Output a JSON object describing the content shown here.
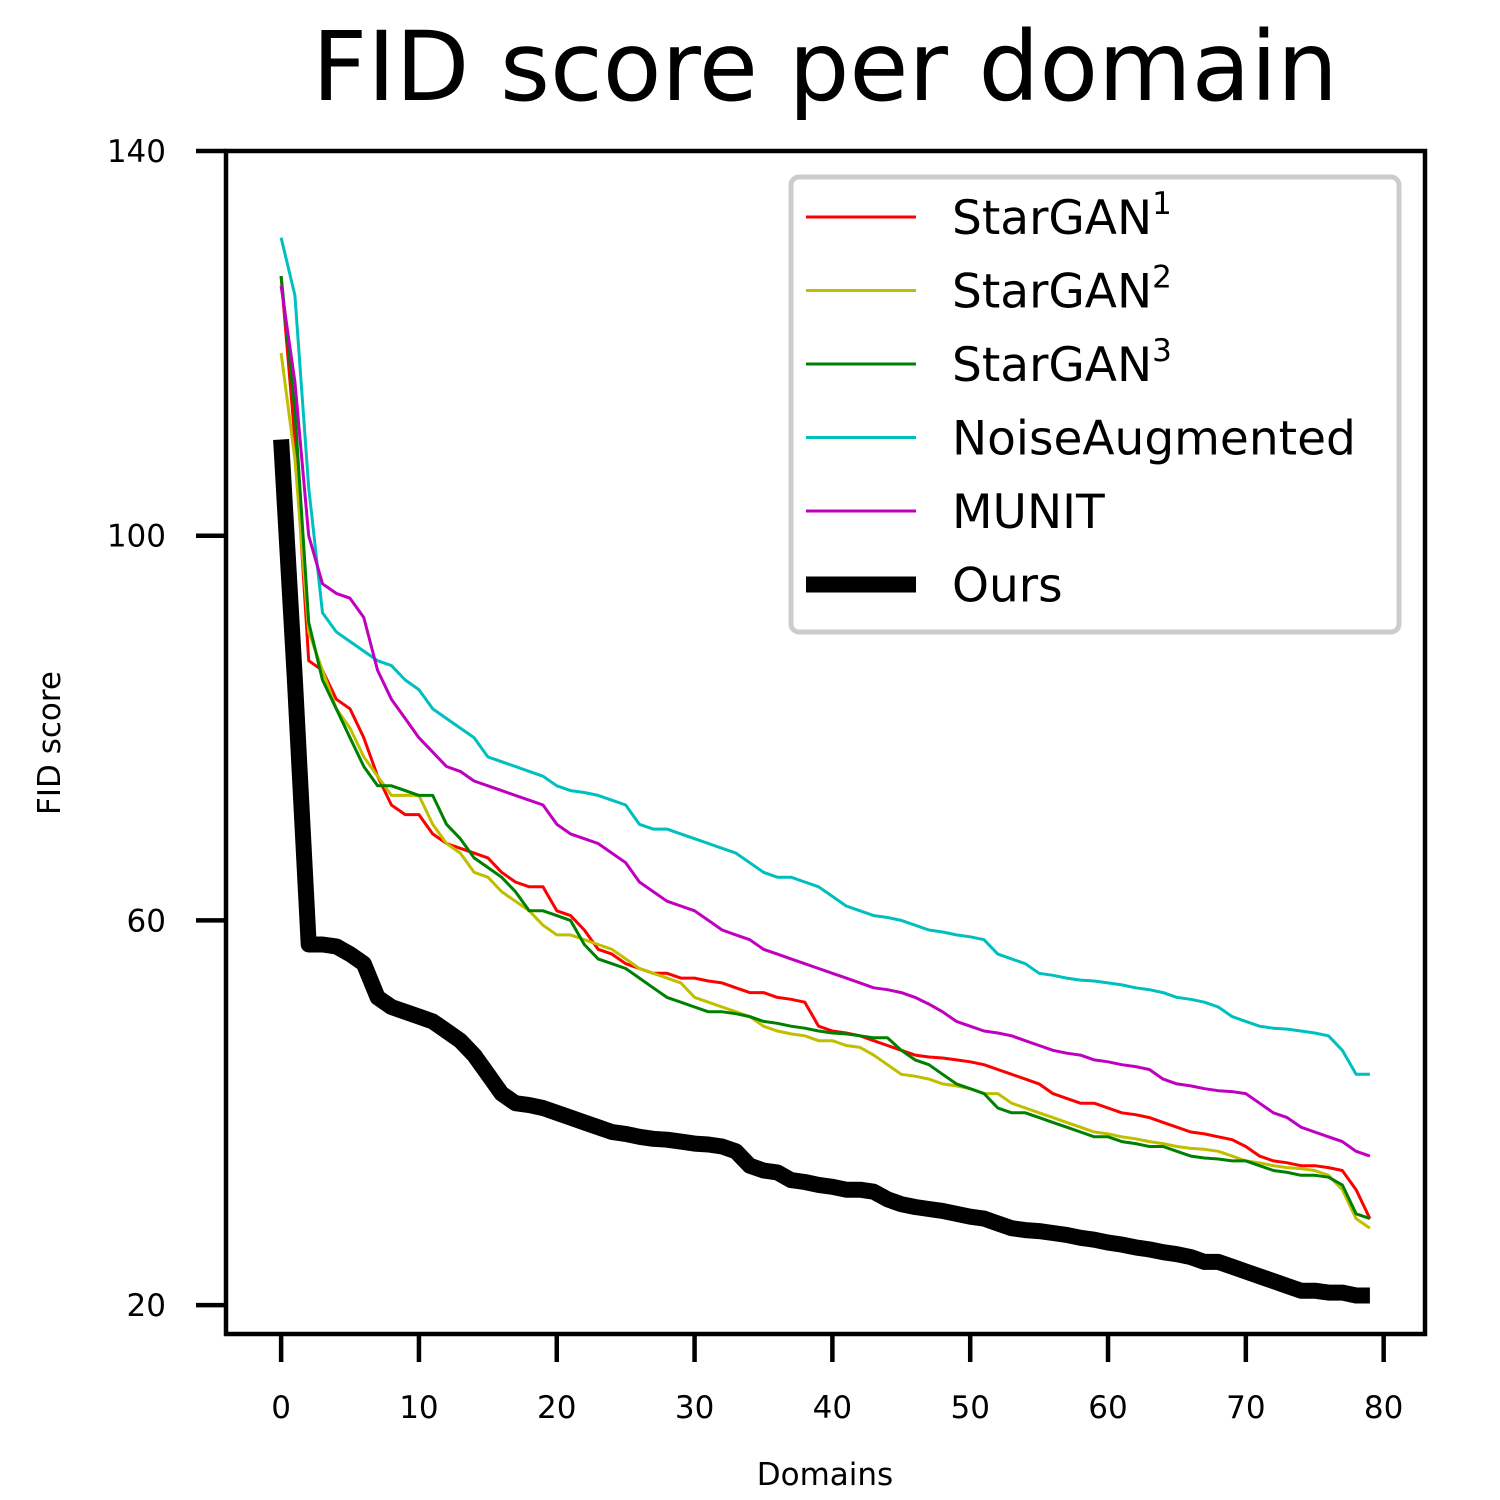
{
  "chart_data": {
    "type": "line",
    "title": "FID score per domain",
    "xlabel": "Domains",
    "ylabel": "FID score",
    "xlim": [
      -4,
      83
    ],
    "ylim": [
      17,
      140
    ],
    "xticks": [
      0,
      10,
      20,
      30,
      40,
      50,
      60,
      70,
      80
    ],
    "yticks": [
      20,
      60,
      100,
      140
    ],
    "legend_position": "top-right",
    "grid": false,
    "series": [
      {
        "name": "StarGAN",
        "superscript": "1",
        "color": "#ff0000",
        "linewidth": "thin",
        "x": [
          0,
          1,
          2,
          3,
          4,
          5,
          6,
          7,
          8,
          9,
          10,
          11,
          12,
          13,
          14,
          15,
          16,
          17,
          18,
          19,
          20,
          21,
          22,
          23,
          24,
          25,
          26,
          27,
          28,
          29,
          30,
          31,
          32,
          33,
          34,
          35,
          36,
          37,
          38,
          39,
          40,
          41,
          42,
          43,
          44,
          45,
          46,
          47,
          48,
          49,
          50,
          51,
          52,
          53,
          54,
          55,
          56,
          57,
          58,
          59,
          60,
          61,
          62,
          63,
          64,
          65,
          66,
          67,
          68,
          69,
          70,
          71,
          72,
          73,
          74,
          75,
          76,
          77,
          78,
          79
        ],
        "y": [
          127,
          110,
          87,
          86,
          83,
          82,
          79,
          75,
          72,
          71,
          71,
          69,
          68,
          67.5,
          67,
          66.5,
          65,
          64,
          63.5,
          63.5,
          61,
          60.5,
          59,
          57,
          56.5,
          55.5,
          55,
          54.5,
          54.5,
          54,
          54,
          53.7,
          53.5,
          53,
          52.5,
          52.5,
          52,
          51.8,
          51.5,
          49,
          48.5,
          48.3,
          48,
          47.5,
          47,
          46.5,
          46,
          45.8,
          45.7,
          45.5,
          45.3,
          45,
          44.5,
          44,
          43.5,
          43,
          42,
          41.5,
          41,
          41,
          40.5,
          40,
          39.8,
          39.5,
          39,
          38.5,
          38,
          37.8,
          37.5,
          37.2,
          36.5,
          35.5,
          35,
          34.8,
          34.5,
          34.5,
          34.3,
          34,
          32,
          29
        ]
      },
      {
        "name": "StarGAN",
        "superscript": "2",
        "color": "#bfbf00",
        "linewidth": "thin",
        "x": [
          0,
          1,
          2,
          3,
          4,
          5,
          6,
          7,
          8,
          9,
          10,
          11,
          12,
          13,
          14,
          15,
          16,
          17,
          18,
          19,
          20,
          21,
          22,
          23,
          24,
          25,
          26,
          27,
          28,
          29,
          30,
          31,
          32,
          33,
          34,
          35,
          36,
          37,
          38,
          39,
          40,
          41,
          42,
          43,
          44,
          45,
          46,
          47,
          48,
          49,
          50,
          51,
          52,
          53,
          54,
          55,
          56,
          57,
          58,
          59,
          60,
          61,
          62,
          63,
          64,
          65,
          66,
          67,
          68,
          69,
          70,
          71,
          72,
          73,
          74,
          75,
          76,
          77,
          78,
          79
        ],
        "y": [
          119,
          108,
          90,
          86,
          82,
          80,
          77,
          75,
          73,
          73,
          73,
          70,
          68,
          67,
          65,
          64.5,
          63,
          62,
          61,
          59.5,
          58.5,
          58.5,
          58,
          57.5,
          57,
          56,
          55,
          54.5,
          54,
          53.5,
          52,
          51.5,
          51,
          50.5,
          50,
          49,
          48.5,
          48.2,
          48,
          47.5,
          47.5,
          47,
          46.8,
          46,
          45,
          44,
          43.8,
          43.5,
          43,
          42.8,
          42.5,
          42,
          42,
          41,
          40.5,
          40,
          39.5,
          39,
          38.5,
          38,
          37.8,
          37.5,
          37.3,
          37,
          36.8,
          36.5,
          36.3,
          36.2,
          36,
          35.5,
          35,
          34.8,
          34.5,
          34.3,
          34.2,
          34,
          33.5,
          32,
          29,
          28
        ]
      },
      {
        "name": "StarGAN",
        "superscript": "3",
        "color": "#008000",
        "linewidth": "thin",
        "x": [
          0,
          1,
          2,
          3,
          4,
          5,
          6,
          7,
          8,
          9,
          10,
          11,
          12,
          13,
          14,
          15,
          16,
          17,
          18,
          19,
          20,
          21,
          22,
          23,
          24,
          25,
          26,
          27,
          28,
          29,
          30,
          31,
          32,
          33,
          34,
          35,
          36,
          37,
          38,
          39,
          40,
          41,
          42,
          43,
          44,
          45,
          46,
          47,
          48,
          49,
          50,
          51,
          52,
          53,
          54,
          55,
          56,
          57,
          58,
          59,
          60,
          61,
          62,
          63,
          64,
          65,
          66,
          67,
          68,
          69,
          70,
          71,
          72,
          73,
          74,
          75,
          76,
          77,
          78,
          79
        ],
        "y": [
          127,
          113,
          91,
          85,
          82,
          79,
          76,
          74,
          74,
          73.5,
          73,
          73,
          70,
          68.5,
          66.5,
          65.5,
          64.5,
          63,
          61,
          61,
          60.5,
          60,
          57.5,
          56,
          55.5,
          55,
          54,
          53,
          52,
          51.5,
          51,
          50.5,
          50.5,
          50.3,
          50,
          49.5,
          49.3,
          49,
          48.8,
          48.5,
          48.3,
          48.2,
          48,
          47.8,
          47.8,
          46.5,
          45.5,
          45,
          44,
          43,
          42.5,
          42,
          40.5,
          40,
          40,
          39.5,
          39,
          38.5,
          38,
          37.5,
          37.5,
          37,
          36.8,
          36.5,
          36.5,
          36,
          35.5,
          35.3,
          35.2,
          35,
          35,
          34.5,
          34,
          33.8,
          33.5,
          33.5,
          33.3,
          32.5,
          29.5,
          29
        ]
      },
      {
        "name": "NoiseAugmented",
        "superscript": "",
        "color": "#00bfbf",
        "linewidth": "thin",
        "x": [
          0,
          1,
          2,
          3,
          4,
          5,
          6,
          7,
          8,
          9,
          10,
          11,
          12,
          13,
          14,
          15,
          16,
          17,
          18,
          19,
          20,
          21,
          22,
          23,
          24,
          25,
          26,
          27,
          28,
          29,
          30,
          31,
          32,
          33,
          34,
          35,
          36,
          37,
          38,
          39,
          40,
          41,
          42,
          43,
          44,
          45,
          46,
          47,
          48,
          49,
          50,
          51,
          52,
          53,
          54,
          55,
          56,
          57,
          58,
          59,
          60,
          61,
          62,
          63,
          64,
          65,
          66,
          67,
          68,
          69,
          70,
          71,
          72,
          73,
          74,
          75,
          76,
          77,
          78,
          79
        ],
        "y": [
          131,
          125,
          105,
          92,
          90,
          89,
          88,
          87,
          86.5,
          85,
          84,
          82,
          81,
          80,
          79,
          77,
          76.5,
          76,
          75.5,
          75,
          74,
          73.5,
          73.3,
          73,
          72.5,
          72,
          70,
          69.5,
          69.5,
          69,
          68.5,
          68,
          67.5,
          67,
          66,
          65,
          64.5,
          64.5,
          64,
          63.5,
          62.5,
          61.5,
          61,
          60.5,
          60.3,
          60,
          59.5,
          59,
          58.8,
          58.5,
          58.3,
          58,
          56.5,
          56,
          55.5,
          54.5,
          54.3,
          54,
          53.8,
          53.7,
          53.5,
          53.3,
          53,
          52.8,
          52.5,
          52,
          51.8,
          51.5,
          51,
          50,
          49.5,
          49,
          48.8,
          48.7,
          48.5,
          48.3,
          48,
          46.5,
          44,
          44
        ]
      },
      {
        "name": "MUNIT",
        "superscript": "",
        "color": "#bf00bf",
        "linewidth": "thin",
        "x": [
          0,
          1,
          2,
          3,
          4,
          5,
          6,
          7,
          8,
          9,
          10,
          11,
          12,
          13,
          14,
          15,
          16,
          17,
          18,
          19,
          20,
          21,
          22,
          23,
          24,
          25,
          26,
          27,
          28,
          29,
          30,
          31,
          32,
          33,
          34,
          35,
          36,
          37,
          38,
          39,
          40,
          41,
          42,
          43,
          44,
          45,
          46,
          47,
          48,
          49,
          50,
          51,
          52,
          53,
          54,
          55,
          56,
          57,
          58,
          59,
          60,
          61,
          62,
          63,
          64,
          65,
          66,
          67,
          68,
          69,
          70,
          71,
          72,
          73,
          74,
          75,
          76,
          77,
          78,
          79
        ],
        "y": [
          126,
          116,
          100,
          95,
          94,
          93.5,
          91.5,
          86,
          83,
          81,
          79,
          77.5,
          76,
          75.5,
          74.5,
          74,
          73.5,
          73,
          72.5,
          72,
          70,
          69,
          68.5,
          68,
          67,
          66,
          64,
          63,
          62,
          61.5,
          61,
          60,
          59,
          58.5,
          58,
          57,
          56.5,
          56,
          55.5,
          55,
          54.5,
          54,
          53.5,
          53,
          52.8,
          52.5,
          52,
          51.3,
          50.5,
          49.5,
          49,
          48.5,
          48.3,
          48,
          47.5,
          47,
          46.5,
          46.2,
          46,
          45.5,
          45.3,
          45,
          44.8,
          44.5,
          43.5,
          43,
          42.8,
          42.5,
          42.3,
          42.2,
          42,
          41,
          40,
          39.5,
          38.5,
          38,
          37.5,
          37,
          36,
          35.5
        ]
      },
      {
        "name": "Ours",
        "superscript": "",
        "color": "#000000",
        "linewidth": "thick",
        "x": [
          0,
          1,
          2,
          3,
          4,
          5,
          6,
          7,
          8,
          9,
          10,
          11,
          12,
          13,
          14,
          15,
          16,
          17,
          18,
          19,
          20,
          21,
          22,
          23,
          24,
          25,
          26,
          27,
          28,
          29,
          30,
          31,
          32,
          33,
          34,
          35,
          36,
          37,
          38,
          39,
          40,
          41,
          42,
          43,
          44,
          45,
          46,
          47,
          48,
          49,
          50,
          51,
          52,
          53,
          54,
          55,
          56,
          57,
          58,
          59,
          60,
          61,
          62,
          63,
          64,
          65,
          66,
          67,
          68,
          69,
          70,
          71,
          72,
          73,
          74,
          75,
          76,
          77,
          78,
          79
        ],
        "y": [
          110,
          85,
          57.5,
          57.5,
          57.3,
          56.5,
          55.5,
          52,
          51,
          50.5,
          50,
          49.5,
          48.5,
          47.5,
          46,
          44,
          42,
          41,
          40.8,
          40.5,
          40,
          39.5,
          39,
          38.5,
          38,
          37.8,
          37.5,
          37.3,
          37.2,
          37,
          36.8,
          36.7,
          36.5,
          36,
          34.5,
          34,
          33.8,
          33,
          32.8,
          32.5,
          32.3,
          32,
          32,
          31.8,
          31,
          30.5,
          30.2,
          30,
          29.8,
          29.5,
          29.2,
          29,
          28.5,
          28,
          27.8,
          27.7,
          27.5,
          27.3,
          27,
          26.8,
          26.5,
          26.3,
          26,
          25.8,
          25.5,
          25.3,
          25,
          24.5,
          24.5,
          24,
          23.5,
          23,
          22.5,
          22,
          21.5,
          21.5,
          21.3,
          21.3,
          21,
          21
        ]
      }
    ]
  }
}
